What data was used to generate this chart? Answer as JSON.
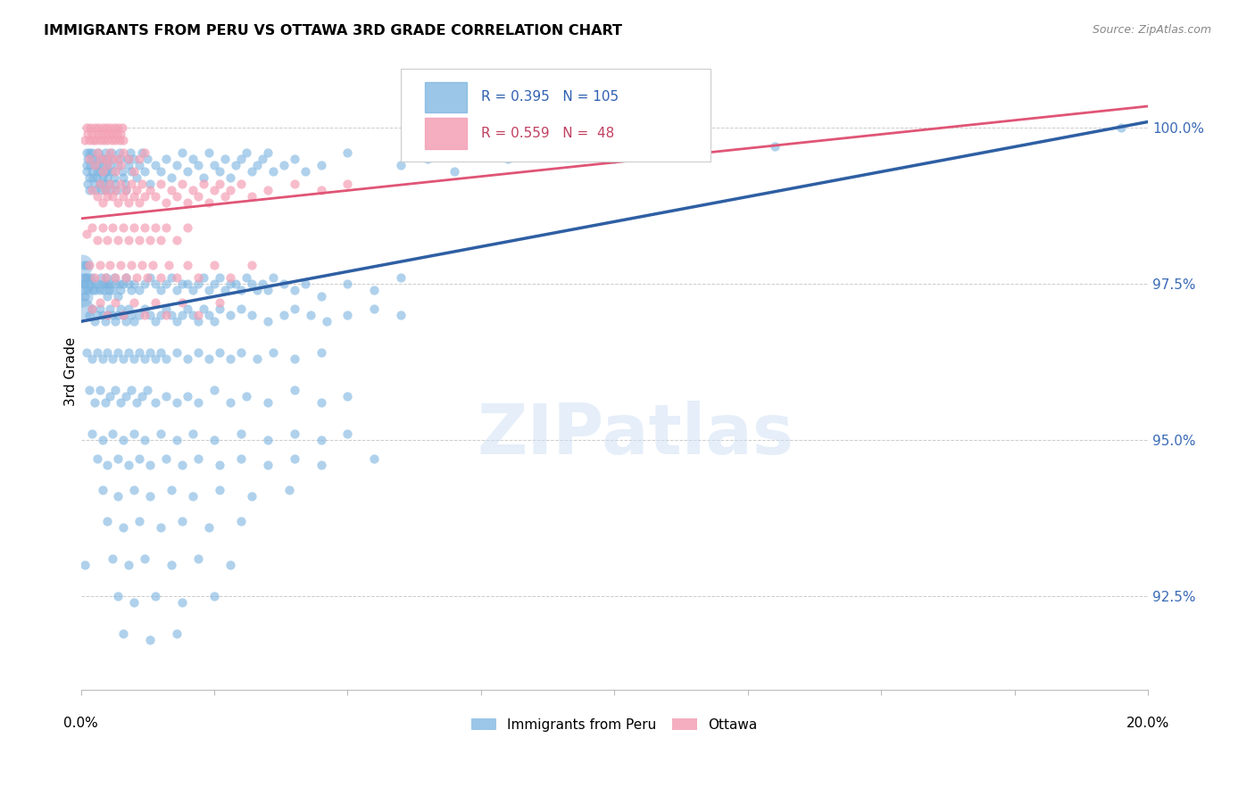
{
  "title": "IMMIGRANTS FROM PERU VS OTTAWA 3RD GRADE CORRELATION CHART",
  "source": "Source: ZipAtlas.com",
  "ylabel": "3rd Grade",
  "yticks": [
    92.5,
    95.0,
    97.5,
    100.0
  ],
  "xlim": [
    0.0,
    20.0
  ],
  "ylim": [
    91.0,
    101.2
  ],
  "blue_R": 0.395,
  "blue_N": 105,
  "pink_R": 0.559,
  "pink_N": 48,
  "blue_color": "#7ab3e0",
  "pink_color": "#f4a0b5",
  "blue_line_color": "#2e5fa3",
  "pink_line_color": "#e05575",
  "legend_label_blue": "Immigrants from Peru",
  "legend_label_pink": "Ottawa",
  "blue_line_x0": 0.0,
  "blue_line_x1": 20.0,
  "blue_line_y0": 96.9,
  "blue_line_y1": 100.1,
  "pink_line_x0": 0.0,
  "pink_line_x1": 20.0,
  "pink_line_y0": 98.55,
  "pink_line_y1": 100.35,
  "blue_scatter": [
    [
      0.05,
      97.8
    ],
    [
      0.07,
      97.5
    ],
    [
      0.08,
      97.6
    ],
    [
      0.08,
      97.3
    ],
    [
      0.1,
      99.6
    ],
    [
      0.1,
      99.4
    ],
    [
      0.1,
      99.3
    ],
    [
      0.12,
      99.5
    ],
    [
      0.12,
      99.1
    ],
    [
      0.15,
      99.6
    ],
    [
      0.15,
      99.2
    ],
    [
      0.15,
      99.0
    ],
    [
      0.18,
      99.4
    ],
    [
      0.2,
      99.6
    ],
    [
      0.2,
      99.5
    ],
    [
      0.2,
      99.3
    ],
    [
      0.22,
      99.2
    ],
    [
      0.25,
      99.5
    ],
    [
      0.25,
      99.4
    ],
    [
      0.25,
      99.1
    ],
    [
      0.28,
      99.0
    ],
    [
      0.3,
      99.4
    ],
    [
      0.3,
      99.3
    ],
    [
      0.3,
      99.2
    ],
    [
      0.32,
      99.6
    ],
    [
      0.35,
      99.5
    ],
    [
      0.35,
      99.3
    ],
    [
      0.35,
      99.1
    ],
    [
      0.38,
      99.0
    ],
    [
      0.4,
      99.5
    ],
    [
      0.4,
      99.4
    ],
    [
      0.4,
      99.2
    ],
    [
      0.42,
      99.1
    ],
    [
      0.45,
      99.3
    ],
    [
      0.45,
      99.6
    ],
    [
      0.45,
      99.0
    ],
    [
      0.48,
      99.4
    ],
    [
      0.5,
      99.5
    ],
    [
      0.5,
      99.3
    ],
    [
      0.5,
      99.2
    ],
    [
      0.52,
      99.1
    ],
    [
      0.55,
      99.0
    ],
    [
      0.55,
      99.4
    ],
    [
      0.58,
      99.6
    ],
    [
      0.6,
      99.5
    ],
    [
      0.6,
      99.3
    ],
    [
      0.62,
      99.2
    ],
    [
      0.65,
      99.1
    ],
    [
      0.68,
      99.0
    ],
    [
      0.7,
      99.4
    ],
    [
      0.72,
      99.6
    ],
    [
      0.75,
      99.5
    ],
    [
      0.78,
      99.3
    ],
    [
      0.8,
      99.2
    ],
    [
      0.82,
      99.1
    ],
    [
      0.85,
      99.0
    ],
    [
      0.88,
      99.5
    ],
    [
      0.9,
      99.4
    ],
    [
      0.92,
      99.6
    ],
    [
      0.95,
      99.3
    ],
    [
      1.0,
      99.5
    ],
    [
      1.05,
      99.2
    ],
    [
      1.1,
      99.4
    ],
    [
      1.15,
      99.6
    ],
    [
      1.2,
      99.3
    ],
    [
      1.25,
      99.5
    ],
    [
      1.3,
      99.1
    ],
    [
      1.4,
      99.4
    ],
    [
      1.5,
      99.3
    ],
    [
      1.6,
      99.5
    ],
    [
      1.7,
      99.2
    ],
    [
      1.8,
      99.4
    ],
    [
      1.9,
      99.6
    ],
    [
      2.0,
      99.3
    ],
    [
      2.1,
      99.5
    ],
    [
      2.2,
      99.4
    ],
    [
      2.3,
      99.2
    ],
    [
      2.4,
      99.6
    ],
    [
      2.5,
      99.4
    ],
    [
      2.6,
      99.3
    ],
    [
      2.7,
      99.5
    ],
    [
      2.8,
      99.2
    ],
    [
      2.9,
      99.4
    ],
    [
      3.0,
      99.5
    ],
    [
      3.1,
      99.6
    ],
    [
      3.2,
      99.3
    ],
    [
      3.3,
      99.4
    ],
    [
      3.4,
      99.5
    ],
    [
      3.5,
      99.6
    ],
    [
      3.6,
      99.3
    ],
    [
      3.8,
      99.4
    ],
    [
      4.0,
      99.5
    ],
    [
      4.2,
      99.3
    ],
    [
      4.5,
      99.4
    ],
    [
      5.0,
      99.6
    ],
    [
      6.0,
      99.4
    ],
    [
      6.5,
      99.5
    ],
    [
      7.0,
      99.3
    ],
    [
      8.0,
      99.5
    ],
    [
      9.0,
      99.6
    ],
    [
      10.0,
      99.5
    ],
    [
      11.5,
      99.6
    ],
    [
      13.0,
      99.7
    ],
    [
      19.5,
      100.0
    ],
    [
      0.05,
      97.5
    ],
    [
      0.08,
      93.0
    ],
    [
      0.1,
      97.8
    ],
    [
      0.1,
      97.6
    ],
    [
      0.12,
      97.4
    ],
    [
      0.15,
      97.6
    ],
    [
      0.18,
      97.5
    ],
    [
      0.2,
      97.6
    ],
    [
      0.22,
      97.4
    ],
    [
      0.25,
      97.5
    ],
    [
      0.28,
      97.4
    ],
    [
      0.3,
      97.5
    ],
    [
      0.35,
      97.4
    ],
    [
      0.38,
      97.6
    ],
    [
      0.4,
      97.5
    ],
    [
      0.42,
      97.4
    ],
    [
      0.45,
      97.5
    ],
    [
      0.48,
      97.6
    ],
    [
      0.5,
      97.5
    ],
    [
      0.5,
      97.3
    ],
    [
      0.52,
      97.4
    ],
    [
      0.55,
      97.5
    ],
    [
      0.6,
      97.4
    ],
    [
      0.62,
      97.6
    ],
    [
      0.65,
      97.5
    ],
    [
      0.7,
      97.3
    ],
    [
      0.72,
      97.5
    ],
    [
      0.75,
      97.4
    ],
    [
      0.8,
      97.5
    ],
    [
      0.85,
      97.6
    ],
    [
      0.9,
      97.5
    ],
    [
      0.95,
      97.4
    ],
    [
      1.0,
      97.5
    ],
    [
      1.1,
      97.4
    ],
    [
      1.2,
      97.5
    ],
    [
      1.3,
      97.6
    ],
    [
      1.4,
      97.5
    ],
    [
      1.5,
      97.4
    ],
    [
      1.6,
      97.5
    ],
    [
      1.7,
      97.6
    ],
    [
      1.8,
      97.4
    ],
    [
      1.9,
      97.5
    ],
    [
      2.0,
      97.5
    ],
    [
      2.1,
      97.4
    ],
    [
      2.2,
      97.5
    ],
    [
      2.3,
      97.6
    ],
    [
      2.4,
      97.4
    ],
    [
      2.5,
      97.5
    ],
    [
      2.6,
      97.6
    ],
    [
      2.7,
      97.4
    ],
    [
      2.8,
      97.5
    ],
    [
      2.9,
      97.5
    ],
    [
      3.0,
      97.4
    ],
    [
      3.1,
      97.6
    ],
    [
      3.2,
      97.5
    ],
    [
      3.3,
      97.4
    ],
    [
      3.4,
      97.5
    ],
    [
      3.5,
      97.4
    ],
    [
      3.6,
      97.6
    ],
    [
      3.8,
      97.5
    ],
    [
      4.0,
      97.4
    ],
    [
      4.2,
      97.5
    ],
    [
      4.5,
      97.3
    ],
    [
      5.0,
      97.5
    ],
    [
      5.5,
      97.4
    ],
    [
      6.0,
      97.6
    ],
    [
      0.15,
      97.0
    ],
    [
      0.2,
      97.1
    ],
    [
      0.25,
      96.9
    ],
    [
      0.3,
      97.0
    ],
    [
      0.35,
      97.1
    ],
    [
      0.4,
      97.0
    ],
    [
      0.45,
      96.9
    ],
    [
      0.5,
      97.0
    ],
    [
      0.55,
      97.1
    ],
    [
      0.6,
      97.0
    ],
    [
      0.65,
      96.9
    ],
    [
      0.7,
      97.0
    ],
    [
      0.75,
      97.1
    ],
    [
      0.8,
      97.0
    ],
    [
      0.85,
      96.9
    ],
    [
      0.9,
      97.1
    ],
    [
      0.95,
      97.0
    ],
    [
      1.0,
      96.9
    ],
    [
      1.1,
      97.0
    ],
    [
      1.2,
      97.1
    ],
    [
      1.3,
      97.0
    ],
    [
      1.4,
      96.9
    ],
    [
      1.5,
      97.0
    ],
    [
      1.6,
      97.1
    ],
    [
      1.7,
      97.0
    ],
    [
      1.8,
      96.9
    ],
    [
      1.9,
      97.0
    ],
    [
      2.0,
      97.1
    ],
    [
      2.1,
      97.0
    ],
    [
      2.2,
      96.9
    ],
    [
      2.3,
      97.1
    ],
    [
      2.4,
      97.0
    ],
    [
      2.5,
      96.9
    ],
    [
      2.6,
      97.1
    ],
    [
      2.8,
      97.0
    ],
    [
      3.0,
      97.1
    ],
    [
      3.2,
      97.0
    ],
    [
      3.5,
      96.9
    ],
    [
      3.8,
      97.0
    ],
    [
      4.0,
      97.1
    ],
    [
      4.3,
      97.0
    ],
    [
      4.6,
      96.9
    ],
    [
      5.0,
      97.0
    ],
    [
      5.5,
      97.1
    ],
    [
      6.0,
      97.0
    ],
    [
      0.1,
      96.4
    ],
    [
      0.2,
      96.3
    ],
    [
      0.3,
      96.4
    ],
    [
      0.4,
      96.3
    ],
    [
      0.5,
      96.4
    ],
    [
      0.6,
      96.3
    ],
    [
      0.7,
      96.4
    ],
    [
      0.8,
      96.3
    ],
    [
      0.9,
      96.4
    ],
    [
      1.0,
      96.3
    ],
    [
      1.1,
      96.4
    ],
    [
      1.2,
      96.3
    ],
    [
      1.3,
      96.4
    ],
    [
      1.4,
      96.3
    ],
    [
      1.5,
      96.4
    ],
    [
      1.6,
      96.3
    ],
    [
      1.8,
      96.4
    ],
    [
      2.0,
      96.3
    ],
    [
      2.2,
      96.4
    ],
    [
      2.4,
      96.3
    ],
    [
      2.6,
      96.4
    ],
    [
      2.8,
      96.3
    ],
    [
      3.0,
      96.4
    ],
    [
      3.3,
      96.3
    ],
    [
      3.6,
      96.4
    ],
    [
      4.0,
      96.3
    ],
    [
      4.5,
      96.4
    ],
    [
      0.15,
      95.8
    ],
    [
      0.25,
      95.6
    ],
    [
      0.35,
      95.8
    ],
    [
      0.45,
      95.6
    ],
    [
      0.55,
      95.7
    ],
    [
      0.65,
      95.8
    ],
    [
      0.75,
      95.6
    ],
    [
      0.85,
      95.7
    ],
    [
      0.95,
      95.8
    ],
    [
      1.05,
      95.6
    ],
    [
      1.15,
      95.7
    ],
    [
      1.25,
      95.8
    ],
    [
      1.4,
      95.6
    ],
    [
      1.6,
      95.7
    ],
    [
      1.8,
      95.6
    ],
    [
      2.0,
      95.7
    ],
    [
      2.2,
      95.6
    ],
    [
      2.5,
      95.8
    ],
    [
      2.8,
      95.6
    ],
    [
      3.1,
      95.7
    ],
    [
      3.5,
      95.6
    ],
    [
      4.0,
      95.8
    ],
    [
      4.5,
      95.6
    ],
    [
      5.0,
      95.7
    ],
    [
      0.2,
      95.1
    ],
    [
      0.4,
      95.0
    ],
    [
      0.6,
      95.1
    ],
    [
      0.8,
      95.0
    ],
    [
      1.0,
      95.1
    ],
    [
      1.2,
      95.0
    ],
    [
      1.5,
      95.1
    ],
    [
      1.8,
      95.0
    ],
    [
      2.1,
      95.1
    ],
    [
      2.5,
      95.0
    ],
    [
      3.0,
      95.1
    ],
    [
      3.5,
      95.0
    ],
    [
      4.0,
      95.1
    ],
    [
      4.5,
      95.0
    ],
    [
      5.0,
      95.1
    ],
    [
      0.3,
      94.7
    ],
    [
      0.5,
      94.6
    ],
    [
      0.7,
      94.7
    ],
    [
      0.9,
      94.6
    ],
    [
      1.1,
      94.7
    ],
    [
      1.3,
      94.6
    ],
    [
      1.6,
      94.7
    ],
    [
      1.9,
      94.6
    ],
    [
      2.2,
      94.7
    ],
    [
      2.6,
      94.6
    ],
    [
      3.0,
      94.7
    ],
    [
      3.5,
      94.6
    ],
    [
      4.0,
      94.7
    ],
    [
      4.5,
      94.6
    ],
    [
      5.5,
      94.7
    ],
    [
      0.4,
      94.2
    ],
    [
      0.7,
      94.1
    ],
    [
      1.0,
      94.2
    ],
    [
      1.3,
      94.1
    ],
    [
      1.7,
      94.2
    ],
    [
      2.1,
      94.1
    ],
    [
      2.6,
      94.2
    ],
    [
      3.2,
      94.1
    ],
    [
      3.9,
      94.2
    ],
    [
      0.5,
      93.7
    ],
    [
      0.8,
      93.6
    ],
    [
      1.1,
      93.7
    ],
    [
      1.5,
      93.6
    ],
    [
      1.9,
      93.7
    ],
    [
      2.4,
      93.6
    ],
    [
      3.0,
      93.7
    ],
    [
      0.6,
      93.1
    ],
    [
      0.9,
      93.0
    ],
    [
      1.2,
      93.1
    ],
    [
      1.7,
      93.0
    ],
    [
      2.2,
      93.1
    ],
    [
      2.8,
      93.0
    ],
    [
      0.7,
      92.5
    ],
    [
      1.0,
      92.4
    ],
    [
      1.4,
      92.5
    ],
    [
      1.9,
      92.4
    ],
    [
      2.5,
      92.5
    ],
    [
      0.8,
      91.9
    ],
    [
      1.3,
      91.8
    ],
    [
      1.8,
      91.9
    ]
  ],
  "pink_scatter": [
    [
      0.08,
      99.8
    ],
    [
      0.1,
      100.0
    ],
    [
      0.12,
      99.9
    ],
    [
      0.15,
      99.8
    ],
    [
      0.18,
      100.0
    ],
    [
      0.2,
      99.9
    ],
    [
      0.22,
      99.8
    ],
    [
      0.25,
      100.0
    ],
    [
      0.28,
      99.8
    ],
    [
      0.3,
      99.9
    ],
    [
      0.32,
      100.0
    ],
    [
      0.35,
      99.8
    ],
    [
      0.38,
      99.9
    ],
    [
      0.4,
      100.0
    ],
    [
      0.42,
      99.8
    ],
    [
      0.45,
      99.9
    ],
    [
      0.48,
      100.0
    ],
    [
      0.5,
      99.8
    ],
    [
      0.52,
      99.9
    ],
    [
      0.55,
      100.0
    ],
    [
      0.58,
      99.8
    ],
    [
      0.6,
      99.9
    ],
    [
      0.62,
      100.0
    ],
    [
      0.65,
      99.8
    ],
    [
      0.68,
      99.9
    ],
    [
      0.7,
      100.0
    ],
    [
      0.72,
      99.8
    ],
    [
      0.75,
      99.9
    ],
    [
      0.78,
      100.0
    ],
    [
      0.8,
      99.8
    ],
    [
      0.15,
      99.5
    ],
    [
      0.25,
      99.4
    ],
    [
      0.3,
      99.6
    ],
    [
      0.35,
      99.5
    ],
    [
      0.4,
      99.3
    ],
    [
      0.45,
      99.5
    ],
    [
      0.5,
      99.4
    ],
    [
      0.55,
      99.6
    ],
    [
      0.6,
      99.5
    ],
    [
      0.65,
      99.3
    ],
    [
      0.7,
      99.5
    ],
    [
      0.75,
      99.4
    ],
    [
      0.8,
      99.6
    ],
    [
      0.9,
      99.5
    ],
    [
      1.0,
      99.3
    ],
    [
      1.1,
      99.5
    ],
    [
      1.2,
      99.6
    ],
    [
      0.2,
      99.0
    ],
    [
      0.3,
      98.9
    ],
    [
      0.35,
      99.1
    ],
    [
      0.4,
      98.8
    ],
    [
      0.45,
      99.0
    ],
    [
      0.5,
      98.9
    ],
    [
      0.55,
      99.1
    ],
    [
      0.6,
      98.9
    ],
    [
      0.65,
      99.0
    ],
    [
      0.7,
      98.8
    ],
    [
      0.75,
      99.1
    ],
    [
      0.8,
      98.9
    ],
    [
      0.85,
      99.0
    ],
    [
      0.9,
      98.8
    ],
    [
      0.95,
      99.1
    ],
    [
      1.0,
      98.9
    ],
    [
      1.05,
      99.0
    ],
    [
      1.1,
      98.8
    ],
    [
      1.15,
      99.1
    ],
    [
      1.2,
      98.9
    ],
    [
      1.3,
      99.0
    ],
    [
      1.4,
      98.9
    ],
    [
      1.5,
      99.1
    ],
    [
      1.6,
      98.8
    ],
    [
      1.7,
      99.0
    ],
    [
      1.8,
      98.9
    ],
    [
      1.9,
      99.1
    ],
    [
      2.0,
      98.8
    ],
    [
      2.1,
      99.0
    ],
    [
      2.2,
      98.9
    ],
    [
      2.3,
      99.1
    ],
    [
      2.4,
      98.8
    ],
    [
      2.5,
      99.0
    ],
    [
      2.6,
      99.1
    ],
    [
      2.7,
      98.9
    ],
    [
      2.8,
      99.0
    ],
    [
      3.0,
      99.1
    ],
    [
      3.2,
      98.9
    ],
    [
      3.5,
      99.0
    ],
    [
      4.0,
      99.1
    ],
    [
      4.5,
      99.0
    ],
    [
      5.0,
      99.1
    ],
    [
      0.1,
      98.3
    ],
    [
      0.2,
      98.4
    ],
    [
      0.3,
      98.2
    ],
    [
      0.4,
      98.4
    ],
    [
      0.5,
      98.2
    ],
    [
      0.6,
      98.4
    ],
    [
      0.7,
      98.2
    ],
    [
      0.8,
      98.4
    ],
    [
      0.9,
      98.2
    ],
    [
      1.0,
      98.4
    ],
    [
      1.1,
      98.2
    ],
    [
      1.2,
      98.4
    ],
    [
      1.3,
      98.2
    ],
    [
      1.4,
      98.4
    ],
    [
      1.5,
      98.2
    ],
    [
      1.6,
      98.4
    ],
    [
      1.8,
      98.2
    ],
    [
      2.0,
      98.4
    ],
    [
      0.15,
      97.8
    ],
    [
      0.25,
      97.6
    ],
    [
      0.35,
      97.8
    ],
    [
      0.45,
      97.6
    ],
    [
      0.55,
      97.8
    ],
    [
      0.65,
      97.6
    ],
    [
      0.75,
      97.8
    ],
    [
      0.85,
      97.6
    ],
    [
      0.95,
      97.8
    ],
    [
      1.05,
      97.6
    ],
    [
      1.15,
      97.8
    ],
    [
      1.25,
      97.6
    ],
    [
      1.35,
      97.8
    ],
    [
      1.5,
      97.6
    ],
    [
      1.65,
      97.8
    ],
    [
      1.8,
      97.6
    ],
    [
      2.0,
      97.8
    ],
    [
      2.2,
      97.6
    ],
    [
      2.5,
      97.8
    ],
    [
      2.8,
      97.6
    ],
    [
      3.2,
      97.8
    ],
    [
      0.2,
      97.1
    ],
    [
      0.35,
      97.2
    ],
    [
      0.5,
      97.0
    ],
    [
      0.65,
      97.2
    ],
    [
      0.8,
      97.0
    ],
    [
      1.0,
      97.2
    ],
    [
      1.2,
      97.0
    ],
    [
      1.4,
      97.2
    ],
    [
      1.6,
      97.0
    ],
    [
      1.9,
      97.2
    ],
    [
      2.2,
      97.0
    ],
    [
      2.6,
      97.2
    ]
  ],
  "blue_large_marker": [
    [
      0.02,
      97.5
    ],
    [
      0.03,
      97.3
    ],
    [
      0.04,
      97.1
    ],
    [
      0.02,
      97.8
    ]
  ],
  "blue_large_marker_size": 300
}
